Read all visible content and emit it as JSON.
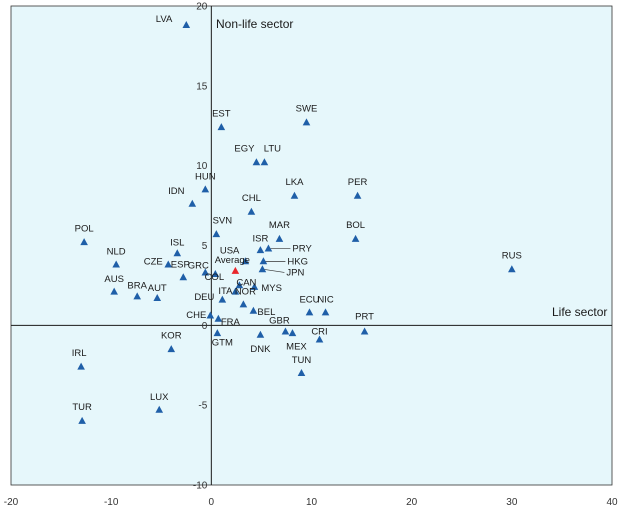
{
  "chart_data": {
    "type": "scatter",
    "title": "",
    "xlabel": "Life sector",
    "ylabel": "Non-life sector",
    "xlim": [
      -20,
      40
    ],
    "ylim": [
      -10,
      20
    ],
    "xticks": [
      -20,
      -10,
      0,
      10,
      20,
      30,
      40
    ],
    "yticks": [
      -10,
      -5,
      0,
      5,
      10,
      15,
      20
    ],
    "colors": {
      "points": "#1f5fa8",
      "highlight": "#e8262b",
      "background": "#e6f7fb",
      "label": "#1a1a1a"
    },
    "points": [
      {
        "label": "LVA",
        "x": -2.5,
        "y": 18.8
      },
      {
        "label": "EST",
        "x": 1.0,
        "y": 12.4
      },
      {
        "label": "SWE",
        "x": 9.5,
        "y": 12.7
      },
      {
        "label": "EGY",
        "x": 4.5,
        "y": 10.2
      },
      {
        "label": "LTU",
        "x": 5.3,
        "y": 10.2
      },
      {
        "label": "HUN",
        "x": -0.6,
        "y": 8.5
      },
      {
        "label": "IDN",
        "x": -1.9,
        "y": 7.6
      },
      {
        "label": "CHL",
        "x": 4.0,
        "y": 7.1
      },
      {
        "label": "LKA",
        "x": 8.3,
        "y": 8.1
      },
      {
        "label": "PER",
        "x": 14.6,
        "y": 8.1
      },
      {
        "label": "SVN",
        "x": 0.5,
        "y": 5.7
      },
      {
        "label": "POL",
        "x": -12.7,
        "y": 5.2
      },
      {
        "label": "MAR",
        "x": 6.8,
        "y": 5.4
      },
      {
        "label": "BOL",
        "x": 14.4,
        "y": 5.4
      },
      {
        "label": "ISR",
        "x": 4.9,
        "y": 4.7
      },
      {
        "label": "ISL",
        "x": -3.4,
        "y": 4.5
      },
      {
        "label": "NLD",
        "x": -9.5,
        "y": 3.8
      },
      {
        "label": "CZE",
        "x": -4.3,
        "y": 3.8
      },
      {
        "label": "USA",
        "x": 3.4,
        "y": 4.0
      },
      {
        "label": "PRY",
        "x": 5.7,
        "y": 4.8
      },
      {
        "label": "HKG",
        "x": 5.2,
        "y": 4.0
      },
      {
        "label": "GRC",
        "x": -0.6,
        "y": 3.3
      },
      {
        "label": "ESP",
        "x": -2.8,
        "y": 3.0
      },
      {
        "label": "Average",
        "x": 2.4,
        "y": 3.4,
        "highlight": true
      },
      {
        "label": "RUS",
        "x": 30.0,
        "y": 3.5
      },
      {
        "label": "JPN",
        "x": 5.1,
        "y": 3.5
      },
      {
        "label": "AUS",
        "x": -9.7,
        "y": 2.1
      },
      {
        "label": "COL",
        "x": 0.4,
        "y": 3.2
      },
      {
        "label": "CAN",
        "x": 2.8,
        "y": 2.5
      },
      {
        "label": "MYS",
        "x": 4.3,
        "y": 2.4
      },
      {
        "label": "ITA",
        "x": 2.4,
        "y": 2.1
      },
      {
        "label": "BRA",
        "x": -7.4,
        "y": 1.8
      },
      {
        "label": "AUT",
        "x": -5.4,
        "y": 1.7
      },
      {
        "label": "DEU",
        "x": 1.1,
        "y": 1.6
      },
      {
        "label": "NOR",
        "x": 3.2,
        "y": 1.3
      },
      {
        "label": "BEL",
        "x": 4.2,
        "y": 0.9
      },
      {
        "label": "ECU",
        "x": 9.8,
        "y": 0.8
      },
      {
        "label": "NIC",
        "x": 11.4,
        "y": 0.8
      },
      {
        "label": "CHE",
        "x": -0.1,
        "y": 0.6
      },
      {
        "label": "FRA",
        "x": 0.7,
        "y": 0.4
      },
      {
        "label": "PRT",
        "x": 15.3,
        "y": -0.4
      },
      {
        "label": "GTM",
        "x": 0.6,
        "y": -0.5
      },
      {
        "label": "DNK",
        "x": 4.9,
        "y": -0.6
      },
      {
        "label": "GBR",
        "x": 7.4,
        "y": -0.4
      },
      {
        "label": "MEX",
        "x": 8.1,
        "y": -0.5
      },
      {
        "label": "CRI",
        "x": 10.8,
        "y": -0.9
      },
      {
        "label": "KOR",
        "x": -4.0,
        "y": -1.5
      },
      {
        "label": "IRL",
        "x": -13.0,
        "y": -2.6
      },
      {
        "label": "TUN",
        "x": 9.0,
        "y": -3.0
      },
      {
        "label": "LUX",
        "x": -5.2,
        "y": -5.3
      },
      {
        "label": "TUR",
        "x": -12.9,
        "y": -6.0
      }
    ]
  }
}
